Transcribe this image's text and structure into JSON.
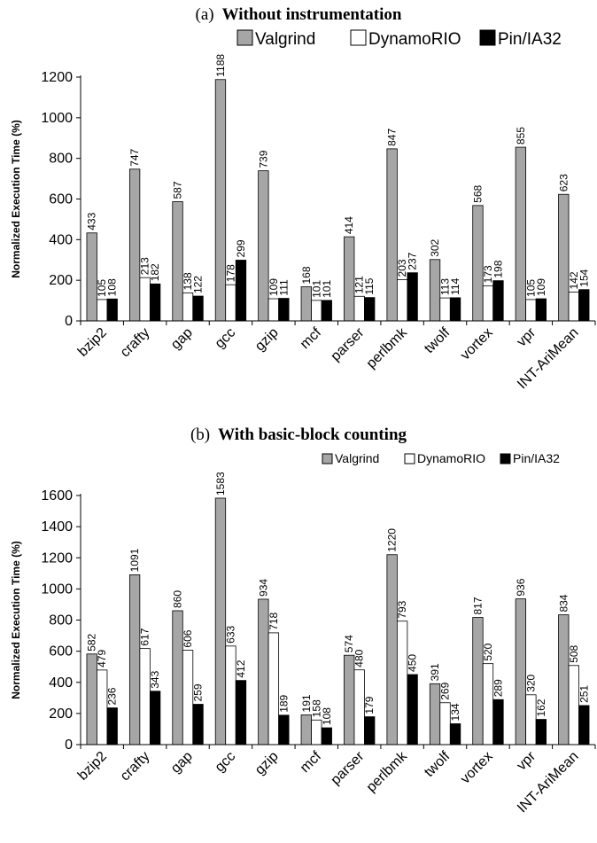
{
  "colors": {
    "valgrind": "#a6a6a6",
    "dynamorio": "#ffffff",
    "pin": "#000000",
    "axis": "#000000"
  },
  "chart_data": [
    {
      "type": "bar",
      "title_prefix": "(a)",
      "title": "Without instrumentation",
      "ylabel": "Normalized Execution Time (%)",
      "xlabel": "",
      "ylim": [
        0,
        1200
      ],
      "yticks": [
        0,
        200,
        400,
        600,
        800,
        1000,
        1200
      ],
      "legend_position": "top-right",
      "categories": [
        "bzip2",
        "crafty",
        "gap",
        "gcc",
        "gzip",
        "mcf",
        "parser",
        "perlbmk",
        "twolf",
        "vortex",
        "vpr",
        "INT-AriMean"
      ],
      "series": [
        {
          "name": "Valgrind",
          "values": [
            433,
            747,
            587,
            1188,
            739,
            168,
            414,
            847,
            302,
            568,
            855,
            623
          ]
        },
        {
          "name": "DynamoRIO",
          "values": [
            105,
            213,
            138,
            178,
            109,
            101,
            121,
            203,
            113,
            173,
            105,
            142
          ]
        },
        {
          "name": "Pin/IA32",
          "values": [
            108,
            182,
            122,
            299,
            111,
            101,
            115,
            237,
            114,
            198,
            109,
            154
          ]
        }
      ]
    },
    {
      "type": "bar",
      "title_prefix": "(b)",
      "title": "With basic-block counting",
      "ylabel": "Normalized Execution Time (%)",
      "xlabel": "",
      "ylim": [
        0,
        1600
      ],
      "yticks": [
        0,
        200,
        400,
        600,
        800,
        1000,
        1200,
        1400,
        1600
      ],
      "legend_position": "top-right",
      "categories": [
        "bzip2",
        "crafty",
        "gap",
        "gcc",
        "gzip",
        "mcf",
        "parser",
        "perlbmk",
        "twolf",
        "vortex",
        "vpr",
        "INT-AriMean"
      ],
      "series": [
        {
          "name": "Valgrind",
          "values": [
            582,
            1091,
            860,
            1583,
            934,
            191,
            574,
            1220,
            391,
            817,
            936,
            834
          ]
        },
        {
          "name": "DynamoRIO",
          "values": [
            479,
            617,
            606,
            633,
            718,
            158,
            480,
            793,
            269,
            520,
            320,
            508
          ]
        },
        {
          "name": "Pin/IA32",
          "values": [
            236,
            343,
            259,
            412,
            189,
            108,
            179,
            450,
            134,
            289,
            162,
            251
          ]
        }
      ]
    }
  ]
}
